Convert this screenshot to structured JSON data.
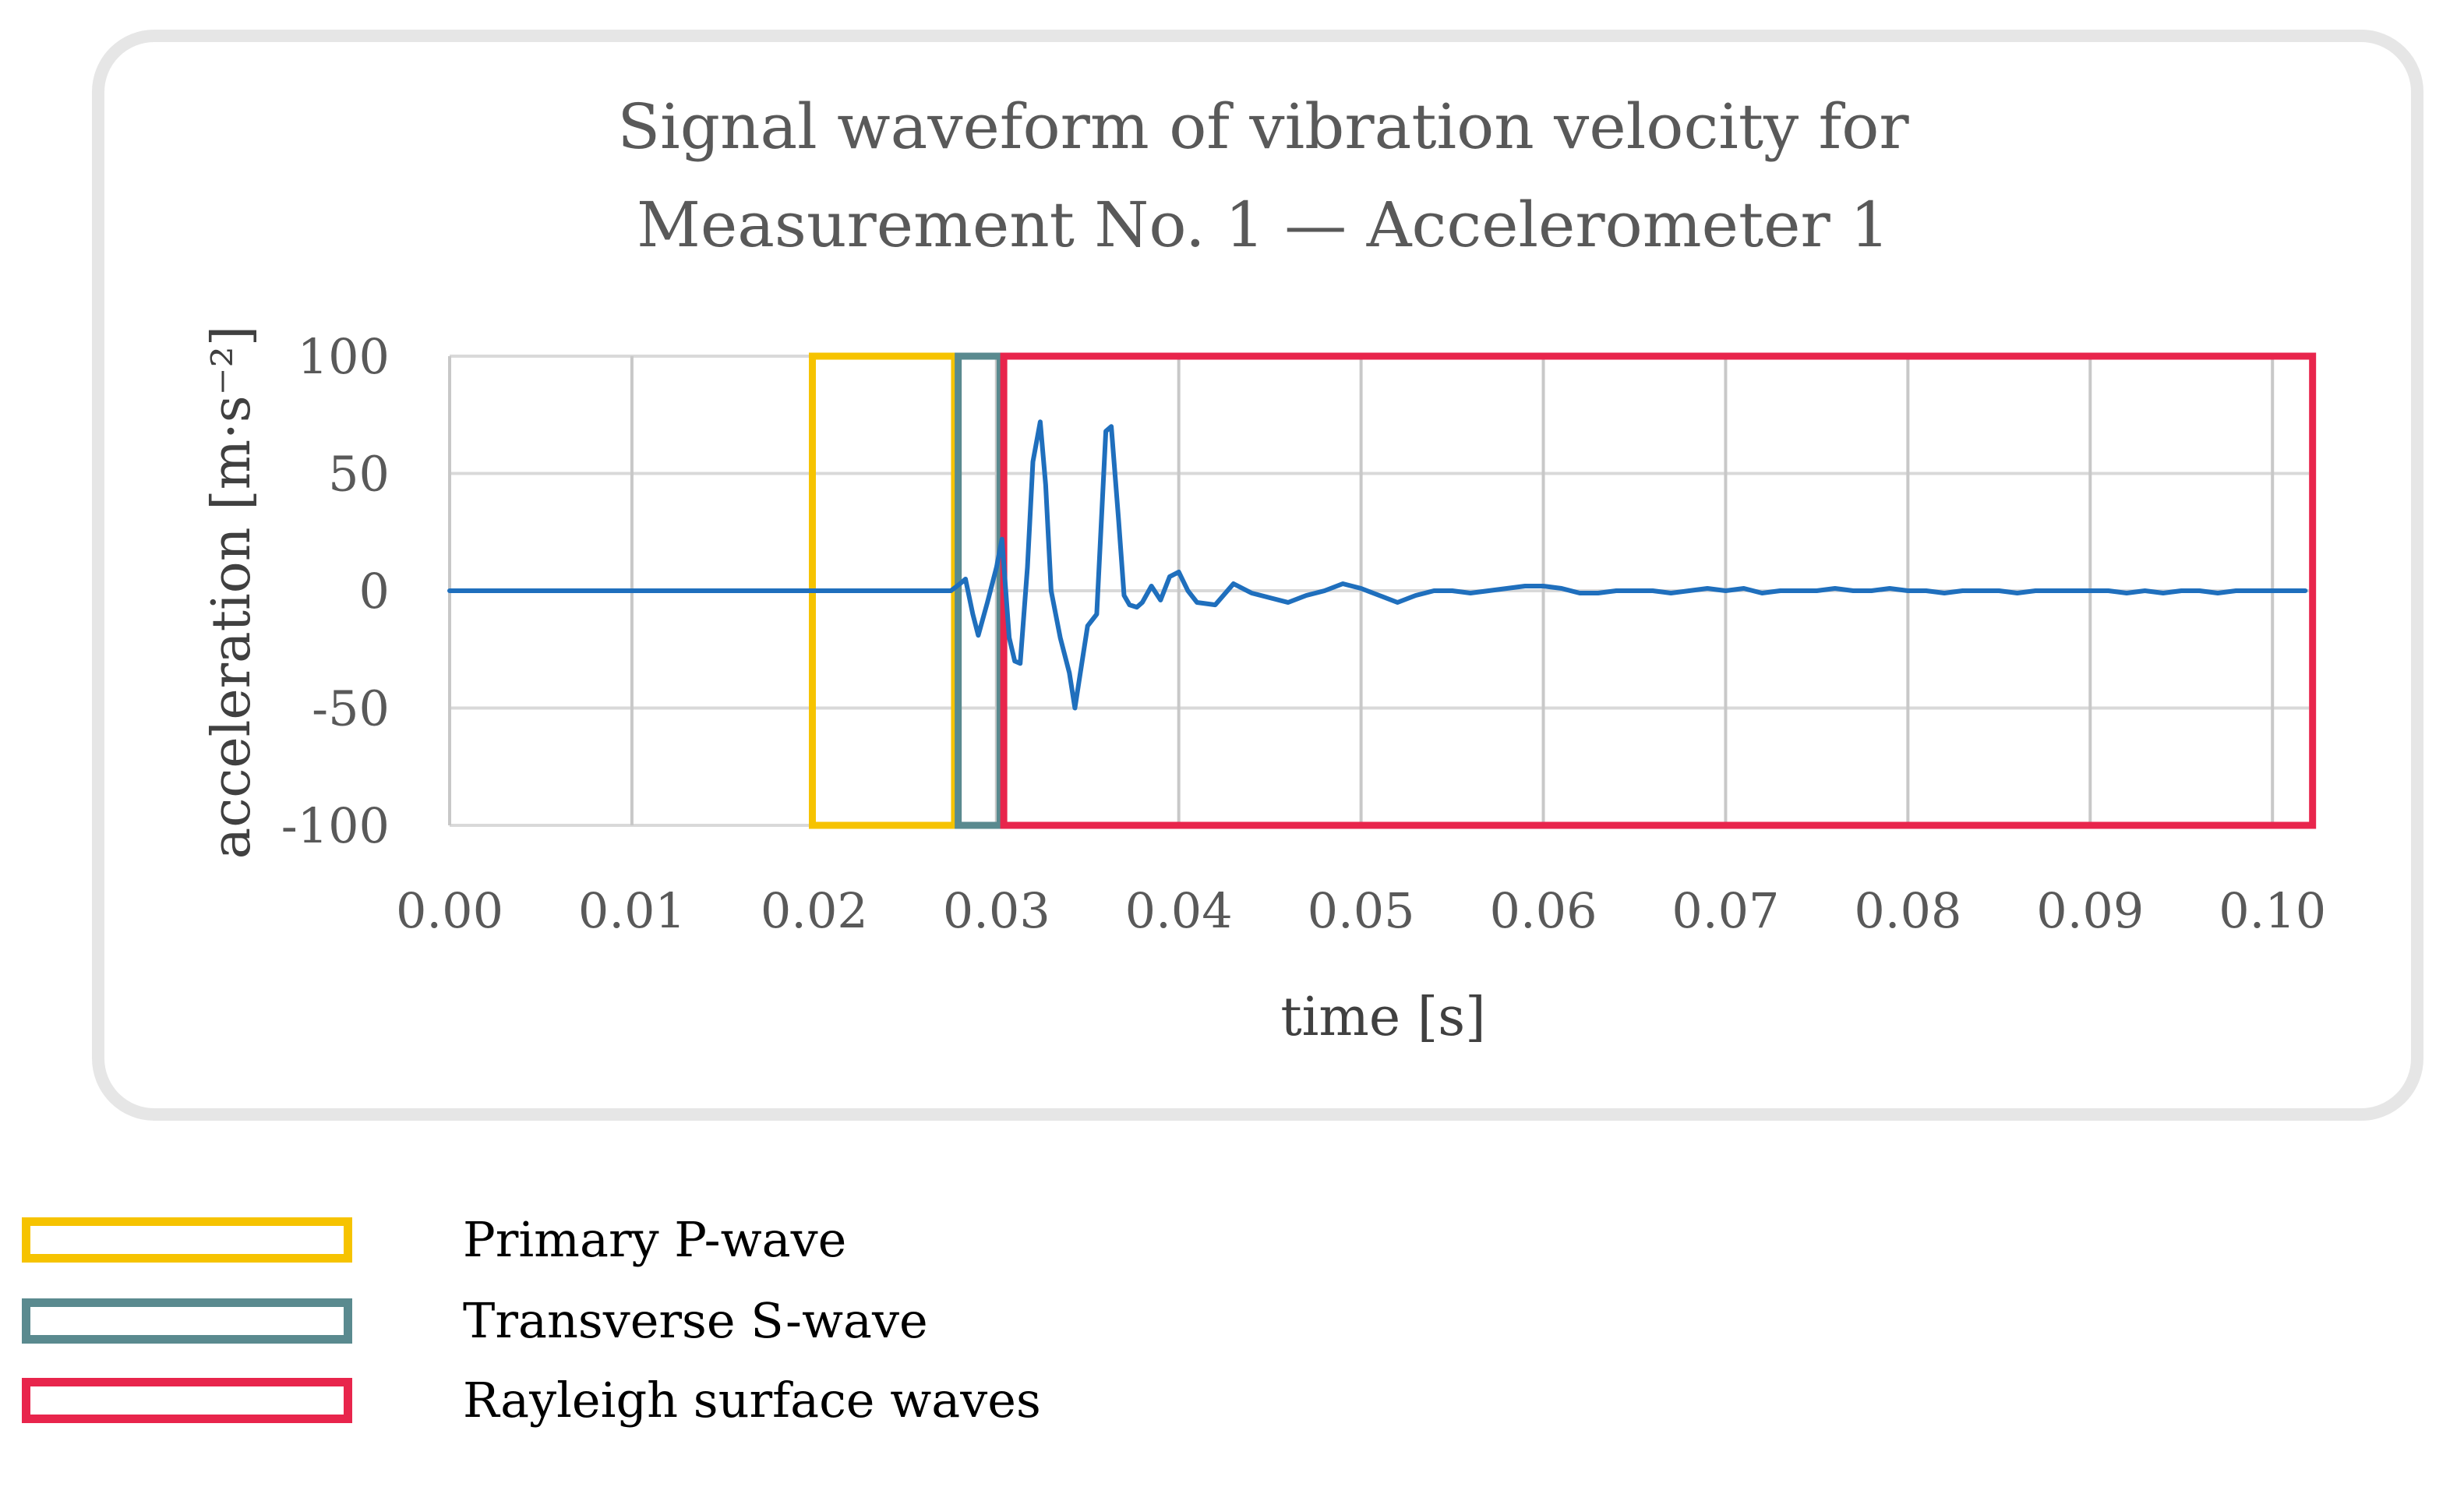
{
  "chart_data": {
    "type": "line",
    "title": [
      "Signal waveform of vibration velocity for",
      "Measurement No. 1 — Accelerometer 1"
    ],
    "xlabel": "time [s]",
    "ylabel": "acceleration [m·s⁻²]",
    "xlim": [
      0.0,
      0.102
    ],
    "ylim": [
      -100,
      100
    ],
    "x_ticks": [
      0.0,
      0.01,
      0.02,
      0.03,
      0.04,
      0.05,
      0.06,
      0.07,
      0.08,
      0.09,
      0.1
    ],
    "x_tick_labels": [
      "0.00",
      "0.01",
      "0.02",
      "0.03",
      "0.04",
      "0.05",
      "0.06",
      "0.07",
      "0.08",
      "0.09",
      "0.10"
    ],
    "y_ticks": [
      100,
      50,
      0,
      -50,
      -100
    ],
    "y_tick_labels": [
      "100",
      "50",
      "0",
      "-50",
      "-100"
    ],
    "grid": true,
    "series": [
      {
        "name": "acceleration",
        "color": "#1f6fbd",
        "x": [
          0.0,
          0.005,
          0.01,
          0.015,
          0.02,
          0.025,
          0.0275,
          0.028,
          0.0283,
          0.0287,
          0.029,
          0.0295,
          0.03,
          0.0303,
          0.0307,
          0.031,
          0.0313,
          0.0317,
          0.032,
          0.0324,
          0.0327,
          0.033,
          0.0335,
          0.034,
          0.0343,
          0.0347,
          0.035,
          0.0355,
          0.036,
          0.0363,
          0.0367,
          0.037,
          0.0373,
          0.0377,
          0.038,
          0.0385,
          0.039,
          0.0395,
          0.04,
          0.0405,
          0.041,
          0.042,
          0.043,
          0.044,
          0.045,
          0.046,
          0.047,
          0.048,
          0.049,
          0.05,
          0.051,
          0.052,
          0.053,
          0.054,
          0.055,
          0.056,
          0.057,
          0.058,
          0.059,
          0.06,
          0.061,
          0.062,
          0.063,
          0.064,
          0.065,
          0.066,
          0.067,
          0.068,
          0.069,
          0.07,
          0.071,
          0.072,
          0.073,
          0.074,
          0.075,
          0.076,
          0.077,
          0.078,
          0.079,
          0.08,
          0.081,
          0.082,
          0.083,
          0.084,
          0.085,
          0.086,
          0.087,
          0.088,
          0.089,
          0.09,
          0.091,
          0.092,
          0.093,
          0.094,
          0.095,
          0.096,
          0.097,
          0.098,
          0.099,
          0.1,
          0.101,
          0.1018
        ],
        "y": [
          0,
          0,
          0,
          0,
          0,
          0,
          0,
          3,
          5,
          -10,
          -19,
          -5,
          10,
          22,
          -20,
          -30,
          -31,
          10,
          55,
          72,
          45,
          0,
          -20,
          -35,
          -50,
          -30,
          -15,
          -10,
          68,
          70,
          30,
          -2,
          -6,
          -7,
          -5,
          2,
          -4,
          6,
          8,
          0,
          -5,
          -6,
          3,
          -1,
          -3,
          -5,
          -2,
          0,
          3,
          1,
          -2,
          -5,
          -2,
          0,
          0,
          -1,
          0,
          1,
          2,
          2,
          1,
          -1,
          -1,
          0,
          0,
          0,
          -1,
          0,
          1,
          0,
          1,
          -1,
          0,
          0,
          0,
          1,
          0,
          0,
          1,
          0,
          0,
          -1,
          0,
          0,
          0,
          -1,
          0,
          0,
          0,
          0,
          0,
          -1,
          0,
          -1,
          0,
          0,
          -1,
          0,
          0,
          0,
          0,
          0
        ]
      }
    ],
    "regions": [
      {
        "name": "Primary P-wave",
        "x_start": 0.0199,
        "x_end": 0.0277,
        "color": "#f6c300"
      },
      {
        "name": "Transverse S-wave",
        "x_start": 0.0279,
        "x_end": 0.0302,
        "color": "#5a8a8f"
      },
      {
        "name": "Rayleigh surface waves",
        "x_start": 0.0304,
        "x_end": 0.1022,
        "color": "#e8254c"
      }
    ]
  },
  "legend": [
    {
      "label": "Primary P-wave",
      "color": "#f6c300"
    },
    {
      "label": "Transverse S-wave",
      "color": "#5a8a8f"
    },
    {
      "label": "Rayleigh surface waves",
      "color": "#e8254c"
    }
  ]
}
